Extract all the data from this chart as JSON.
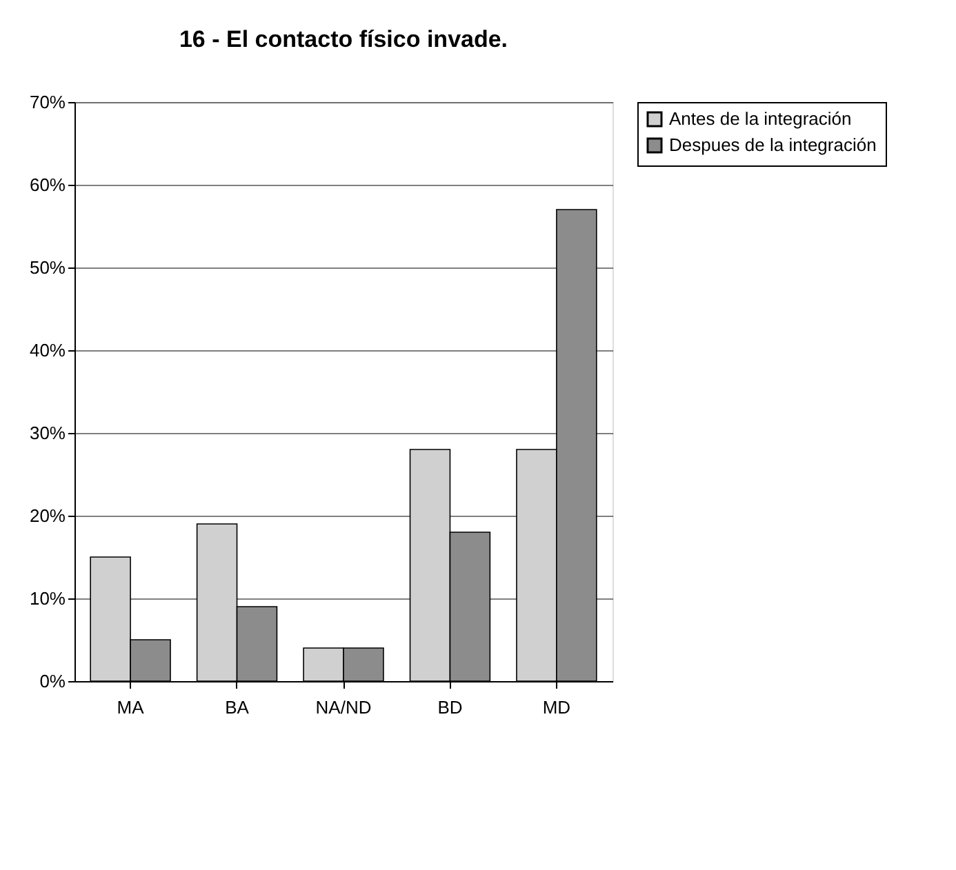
{
  "chart_data": {
    "type": "bar",
    "title": "16 - El contacto físico invade.",
    "categories": [
      "MA",
      "BA",
      "NA/ND",
      "BD",
      "MD"
    ],
    "series": [
      {
        "name": "Antes de la integración",
        "color": "#d0d0d0",
        "values": [
          15,
          19,
          4,
          28,
          28
        ]
      },
      {
        "name": "Despues de la integración",
        "color": "#8c8c8c",
        "values": [
          5,
          9,
          4,
          18,
          57
        ]
      }
    ],
    "ylim": [
      0,
      70
    ],
    "yticks": [
      {
        "value": 0,
        "label": "0%"
      },
      {
        "value": 10,
        "label": "10%"
      },
      {
        "value": 20,
        "label": "20%"
      },
      {
        "value": 30,
        "label": "30%"
      },
      {
        "value": 40,
        "label": "40%"
      },
      {
        "value": 50,
        "label": "50%"
      },
      {
        "value": 60,
        "label": "60%"
      },
      {
        "value": 70,
        "label": "70%"
      }
    ],
    "grid": "y",
    "legend": "right"
  }
}
